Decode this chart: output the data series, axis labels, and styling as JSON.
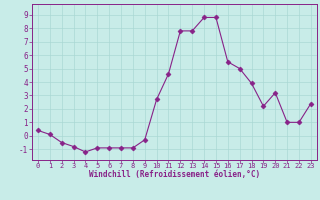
{
  "x": [
    0,
    1,
    2,
    3,
    4,
    5,
    6,
    7,
    8,
    9,
    10,
    11,
    12,
    13,
    14,
    15,
    16,
    17,
    18,
    19,
    20,
    21,
    22,
    23
  ],
  "y": [
    0.4,
    0.1,
    -0.5,
    -0.8,
    -1.2,
    -0.9,
    -0.9,
    -0.9,
    -0.9,
    -0.3,
    2.7,
    4.6,
    7.8,
    7.8,
    8.8,
    8.8,
    5.5,
    5.0,
    3.9,
    2.2,
    3.2,
    1.0,
    1.0,
    2.4
  ],
  "line_color": "#882288",
  "marker": "D",
  "marker_size": 2.5,
  "bg_color": "#c8ece8",
  "grid_color": "#aad8d4",
  "xlabel": "Windchill (Refroidissement éolien,°C)",
  "xlabel_color": "#882288",
  "tick_color": "#882288",
  "spine_color": "#882288",
  "xlim": [
    -0.5,
    23.5
  ],
  "ylim": [
    -1.8,
    9.8
  ],
  "yticks": [
    -1,
    0,
    1,
    2,
    3,
    4,
    5,
    6,
    7,
    8,
    9
  ],
  "xticks": [
    0,
    1,
    2,
    3,
    4,
    5,
    6,
    7,
    8,
    9,
    10,
    11,
    12,
    13,
    14,
    15,
    16,
    17,
    18,
    19,
    20,
    21,
    22,
    23
  ]
}
